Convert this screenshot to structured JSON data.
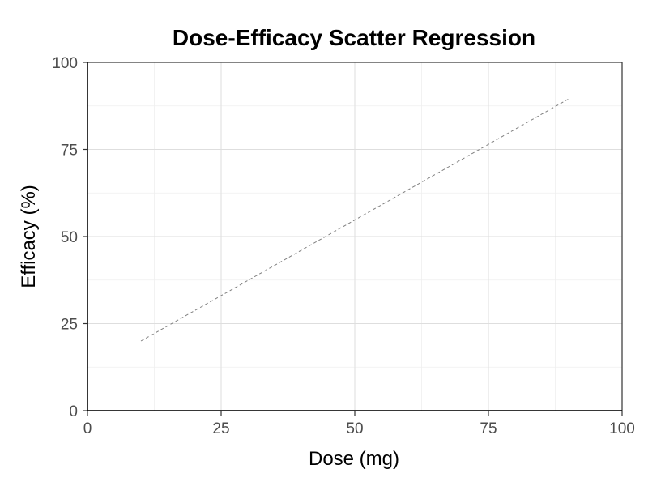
{
  "chart_data": {
    "type": "line",
    "title": "Dose-Efficacy Scatter Regression",
    "xlabel": "Dose (mg)",
    "ylabel": "Efficacy (%)",
    "xlim": [
      0,
      100
    ],
    "ylim": [
      0,
      100
    ],
    "x_ticks": [
      0,
      25,
      50,
      75,
      100
    ],
    "y_ticks": [
      0,
      25,
      50,
      75,
      100
    ],
    "grid": true,
    "legend": "none",
    "series": [
      {
        "style": "dashed",
        "color": "#808080",
        "x": [
          10,
          90
        ],
        "y": [
          20,
          89.5
        ]
      }
    ]
  },
  "colors": {
    "background": "#ffffff",
    "panel_border": "#333333",
    "grid_major": "#dedede",
    "grid_minor": "#efefef",
    "tick_label": "#4d4d4d"
  }
}
